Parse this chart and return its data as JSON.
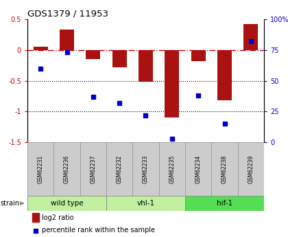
{
  "title": "GDS1379 / 11953",
  "samples": [
    "GSM62231",
    "GSM62236",
    "GSM62237",
    "GSM62232",
    "GSM62233",
    "GSM62235",
    "GSM62234",
    "GSM62238",
    "GSM62239"
  ],
  "log2_ratio": [
    0.05,
    0.33,
    -0.15,
    -0.28,
    -0.52,
    -1.1,
    -0.18,
    -0.82,
    0.42
  ],
  "percentile_rank": [
    60,
    73,
    37,
    32,
    22,
    3,
    38,
    15,
    82
  ],
  "ylim_left": [
    -1.5,
    0.5
  ],
  "ylim_right": [
    0,
    100
  ],
  "bar_color": "#aa1111",
  "dot_color": "#0000cc",
  "hline_color": "#cc0000",
  "dotline_values": [
    -0.5,
    -1.0
  ],
  "right_ticks": [
    0,
    25,
    50,
    75,
    100
  ],
  "right_tick_labels": [
    "0",
    "25",
    "50",
    "75",
    "100%"
  ],
  "left_ticks": [
    -1.5,
    -1.0,
    -0.5,
    0.0,
    0.5
  ],
  "left_tick_labels": [
    "-1.5",
    "-1",
    "-0.5",
    "0",
    "0.5"
  ],
  "group_configs": [
    {
      "label": "wild type",
      "start": 0,
      "end": 3,
      "color": "#c0f0a0"
    },
    {
      "label": "vhl-1",
      "start": 3,
      "end": 6,
      "color": "#c0f0a0"
    },
    {
      "label": "hif-1",
      "start": 6,
      "end": 9,
      "color": "#55dd55"
    }
  ],
  "legend_items": [
    {
      "color": "#aa1111",
      "label": "log2 ratio"
    },
    {
      "color": "#0000cc",
      "label": "percentile rank within the sample"
    }
  ],
  "sample_box_color": "#cccccc",
  "bg_color": "#ffffff"
}
